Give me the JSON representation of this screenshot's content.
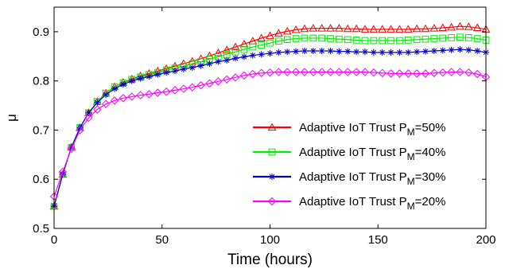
{
  "chart_data": {
    "type": "line",
    "xlabel": "Time (hours)",
    "ylabel": "μ",
    "xlim": [
      0,
      200
    ],
    "ylim": [
      0.5,
      0.95
    ],
    "xticks": [
      0,
      50,
      100,
      150,
      200
    ],
    "yticks": [
      0.5,
      0.6,
      0.7,
      0.8,
      0.9
    ],
    "xtick_labels": [
      "0",
      "50",
      "100",
      "150",
      "200"
    ],
    "ytick_labels": [
      "0.5",
      "0.6",
      "0.7",
      "0.8",
      "0.9"
    ],
    "grid": false,
    "legend_position": "bottom-right",
    "x": [
      0,
      4,
      8,
      12,
      16,
      20,
      24,
      28,
      32,
      36,
      40,
      44,
      48,
      52,
      56,
      60,
      64,
      68,
      72,
      76,
      80,
      84,
      88,
      92,
      96,
      100,
      104,
      108,
      112,
      116,
      120,
      124,
      128,
      132,
      136,
      140,
      144,
      148,
      152,
      156,
      160,
      164,
      168,
      172,
      176,
      180,
      184,
      188,
      192,
      196,
      200
    ],
    "series": [
      {
        "name": "Adaptive IoT Trust P",
        "subscript": "M",
        "suffix": "=50%",
        "color": "#ff0000",
        "marker": "triangle",
        "values": [
          0.545,
          0.61,
          0.665,
          0.705,
          0.735,
          0.758,
          0.775,
          0.788,
          0.797,
          0.804,
          0.81,
          0.815,
          0.82,
          0.825,
          0.83,
          0.835,
          0.84,
          0.845,
          0.851,
          0.857,
          0.863,
          0.869,
          0.875,
          0.881,
          0.887,
          0.892,
          0.897,
          0.901,
          0.904,
          0.906,
          0.907,
          0.907,
          0.907,
          0.907,
          0.906,
          0.906,
          0.905,
          0.905,
          0.905,
          0.905,
          0.905,
          0.905,
          0.906,
          0.906,
          0.907,
          0.908,
          0.909,
          0.911,
          0.91,
          0.908,
          0.905
        ]
      },
      {
        "name": "Adaptive IoT Trust P",
        "subscript": "M",
        "suffix": "=40%",
        "color": "#00ee00",
        "marker": "square",
        "values": [
          0.545,
          0.61,
          0.665,
          0.705,
          0.735,
          0.758,
          0.775,
          0.788,
          0.796,
          0.803,
          0.808,
          0.813,
          0.817,
          0.822,
          0.826,
          0.83,
          0.835,
          0.839,
          0.844,
          0.849,
          0.854,
          0.859,
          0.864,
          0.869,
          0.873,
          0.877,
          0.881,
          0.884,
          0.886,
          0.887,
          0.887,
          0.887,
          0.886,
          0.885,
          0.884,
          0.883,
          0.882,
          0.882,
          0.882,
          0.882,
          0.882,
          0.883,
          0.884,
          0.885,
          0.886,
          0.887,
          0.888,
          0.889,
          0.888,
          0.886,
          0.883
        ]
      },
      {
        "name": "Adaptive IoT Trust P",
        "subscript": "M",
        "suffix": "=30%",
        "color": "#0000cc",
        "marker": "asterisk",
        "values": [
          0.545,
          0.61,
          0.665,
          0.705,
          0.735,
          0.756,
          0.772,
          0.784,
          0.793,
          0.8,
          0.805,
          0.809,
          0.813,
          0.817,
          0.82,
          0.824,
          0.827,
          0.831,
          0.835,
          0.839,
          0.842,
          0.846,
          0.849,
          0.852,
          0.854,
          0.856,
          0.858,
          0.859,
          0.86,
          0.861,
          0.861,
          0.861,
          0.861,
          0.86,
          0.86,
          0.859,
          0.859,
          0.858,
          0.858,
          0.858,
          0.858,
          0.858,
          0.859,
          0.86,
          0.861,
          0.862,
          0.863,
          0.864,
          0.863,
          0.861,
          0.858
        ]
      },
      {
        "name": "Adaptive IoT Trust P",
        "subscript": "M",
        "suffix": "=20%",
        "color": "#ff00ff",
        "marker": "diamond",
        "values": [
          0.565,
          0.615,
          0.662,
          0.7,
          0.725,
          0.742,
          0.753,
          0.76,
          0.765,
          0.768,
          0.771,
          0.773,
          0.776,
          0.778,
          0.781,
          0.784,
          0.787,
          0.791,
          0.795,
          0.799,
          0.803,
          0.807,
          0.811,
          0.814,
          0.816,
          0.817,
          0.818,
          0.818,
          0.818,
          0.818,
          0.818,
          0.818,
          0.818,
          0.818,
          0.818,
          0.818,
          0.818,
          0.817,
          0.816,
          0.815,
          0.815,
          0.815,
          0.815,
          0.815,
          0.816,
          0.817,
          0.818,
          0.818,
          0.817,
          0.814,
          0.808
        ]
      }
    ]
  }
}
